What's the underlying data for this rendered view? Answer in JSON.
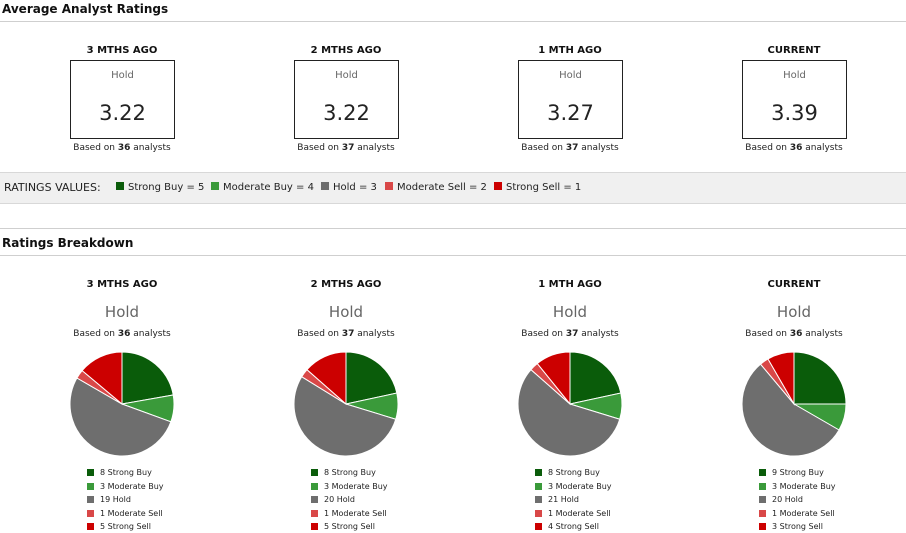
{
  "avg_section": {
    "title": "Average Analyst Ratings"
  },
  "breakdown_section": {
    "title": "Ratings Breakdown"
  },
  "based_prefix": "Based on ",
  "based_suffix": " analysts",
  "ratings_values": {
    "title": "RATINGS VALUES:",
    "items": [
      {
        "label": "Strong Buy = 5",
        "color": "#0a5c0a"
      },
      {
        "label": "Moderate Buy = 4",
        "color": "#3a9a3a"
      },
      {
        "label": "Hold = 3",
        "color": "#6e6e6e"
      },
      {
        "label": "Moderate Sell = 2",
        "color": "#d94848"
      },
      {
        "label": "Strong Sell = 1",
        "color": "#cc0000"
      }
    ]
  },
  "periods": [
    {
      "label": "3 MTHS AGO",
      "rating": "Hold",
      "score": "3.22",
      "analysts": "36"
    },
    {
      "label": "2 MTHS AGO",
      "rating": "Hold",
      "score": "3.22",
      "analysts": "37"
    },
    {
      "label": "1 MTH AGO",
      "rating": "Hold",
      "score": "3.27",
      "analysts": "37"
    },
    {
      "label": "CURRENT",
      "rating": "Hold",
      "score": "3.39",
      "analysts": "36"
    }
  ],
  "chart_data": [
    {
      "type": "pie",
      "title": "3 MTHS AGO",
      "categories": [
        "Strong Buy",
        "Moderate Buy",
        "Hold",
        "Moderate Sell",
        "Strong Sell"
      ],
      "values": [
        8,
        3,
        19,
        1,
        5
      ],
      "legend": [
        "8 Strong Buy",
        "3 Moderate Buy",
        "19 Hold",
        "1 Moderate Sell",
        "5 Strong Sell"
      ],
      "colors": [
        "#0a5c0a",
        "#3a9a3a",
        "#6e6e6e",
        "#d94848",
        "#cc0000"
      ]
    },
    {
      "type": "pie",
      "title": "2 MTHS AGO",
      "categories": [
        "Strong Buy",
        "Moderate Buy",
        "Hold",
        "Moderate Sell",
        "Strong Sell"
      ],
      "values": [
        8,
        3,
        20,
        1,
        5
      ],
      "legend": [
        "8 Strong Buy",
        "3 Moderate Buy",
        "20 Hold",
        "1 Moderate Sell",
        "5 Strong Sell"
      ],
      "colors": [
        "#0a5c0a",
        "#3a9a3a",
        "#6e6e6e",
        "#d94848",
        "#cc0000"
      ]
    },
    {
      "type": "pie",
      "title": "1 MTH AGO",
      "categories": [
        "Strong Buy",
        "Moderate Buy",
        "Hold",
        "Moderate Sell",
        "Strong Sell"
      ],
      "values": [
        8,
        3,
        21,
        1,
        4
      ],
      "legend": [
        "8 Strong Buy",
        "3 Moderate Buy",
        "21 Hold",
        "1 Moderate Sell",
        "4 Strong Sell"
      ],
      "colors": [
        "#0a5c0a",
        "#3a9a3a",
        "#6e6e6e",
        "#d94848",
        "#cc0000"
      ]
    },
    {
      "type": "pie",
      "title": "CURRENT",
      "categories": [
        "Strong Buy",
        "Moderate Buy",
        "Hold",
        "Moderate Sell",
        "Strong Sell"
      ],
      "values": [
        9,
        3,
        20,
        1,
        3
      ],
      "legend": [
        "9 Strong Buy",
        "3 Moderate Buy",
        "20 Hold",
        "1 Moderate Sell",
        "3 Strong Sell"
      ],
      "colors": [
        "#0a5c0a",
        "#3a9a3a",
        "#6e6e6e",
        "#d94848",
        "#cc0000"
      ]
    }
  ]
}
